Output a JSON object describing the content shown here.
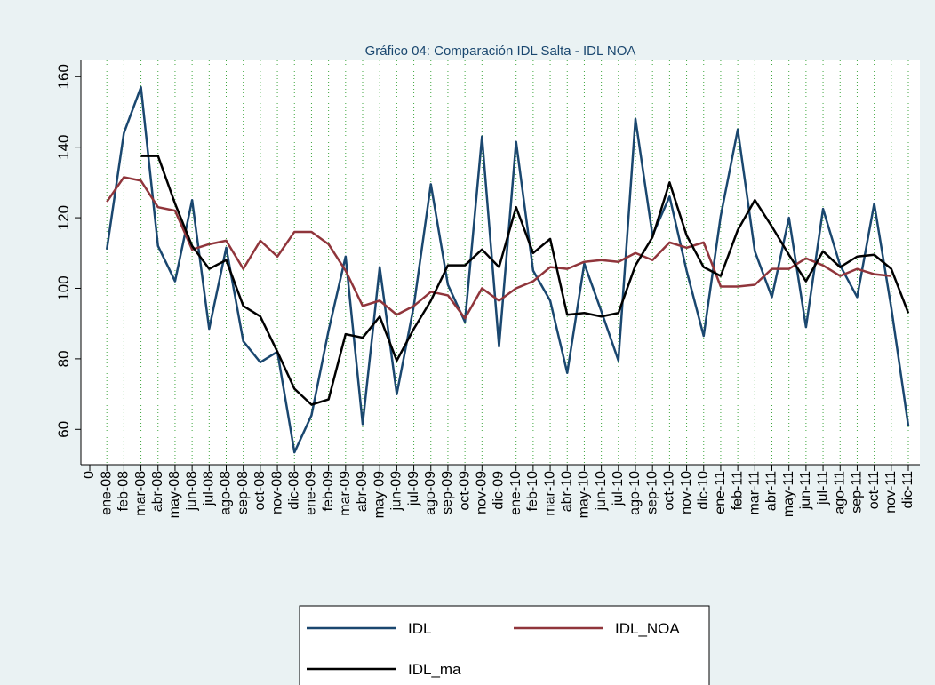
{
  "chart_data": {
    "type": "line",
    "title": "Gráfico 04: Comparación IDL Salta - IDL NOA",
    "categories": [
      "0",
      "ene-08",
      "feb-08",
      "mar-08",
      "abr-08",
      "may-08",
      "jun-08",
      "jul-08",
      "ago-08",
      "sep-08",
      "oct-08",
      "nov-08",
      "dic-08",
      "ene-09",
      "feb-09",
      "mar-09",
      "abr-09",
      "may-09",
      "jun-09",
      "jul-09",
      "ago-09",
      "sep-09",
      "oct-09",
      "nov-09",
      "dic-09",
      "ene-10",
      "feb-10",
      "mar-10",
      "abr-10",
      "may-10",
      "jun-10",
      "jul-10",
      "ago-10",
      "sep-10",
      "oct-10",
      "nov-10",
      "dic-10",
      "ene-11",
      "feb-11",
      "mar-11",
      "abr-11",
      "may-11",
      "jun-11",
      "jul-11",
      "ago-11",
      "sep-11",
      "oct-11",
      "nov-11",
      "dic-11"
    ],
    "series": [
      {
        "name": "IDL",
        "color": "#1a476f",
        "values": [
          null,
          111,
          144,
          157,
          112,
          102,
          125,
          88.5,
          111.5,
          85,
          79,
          82,
          53.5,
          64,
          88,
          109,
          61.5,
          106,
          70,
          95,
          129.5,
          101,
          90.5,
          143,
          83.5,
          141.5,
          105,
          96.5,
          76,
          107,
          93.5,
          79.5,
          148,
          115,
          126,
          105,
          86.5,
          120.5,
          145,
          110.5,
          97.5,
          120,
          89,
          122.5,
          106.5,
          97.5,
          124,
          94.5,
          61
        ]
      },
      {
        "name": "IDL_NOA",
        "color": "#90353b",
        "values": [
          null,
          124.5,
          131.5,
          130.5,
          123,
          122,
          111,
          112.5,
          113.5,
          105.5,
          113.5,
          109,
          116,
          116,
          112.5,
          105,
          95,
          96.5,
          92.5,
          95,
          99,
          98,
          91.5,
          100,
          96.5,
          100,
          102,
          106,
          105.5,
          107.5,
          108,
          107.5,
          110,
          108,
          113,
          111.5,
          113,
          100.5,
          100.5,
          101,
          105.5,
          105.5,
          108.5,
          106.5,
          103.5,
          105.5,
          104,
          103.5,
          null
        ]
      },
      {
        "name": "IDL_ma",
        "color": "#000000",
        "values": [
          null,
          null,
          null,
          137.5,
          137.5,
          124,
          112,
          105.5,
          108,
          95,
          92,
          82,
          71.5,
          67,
          68.5,
          87,
          86,
          92,
          79.5,
          88.5,
          96.5,
          106.5,
          106.5,
          111,
          106,
          123,
          110,
          114,
          92.5,
          93,
          92,
          93,
          106.5,
          114.5,
          130,
          115,
          106,
          103.5,
          116.5,
          125,
          117.5,
          109.5,
          102,
          110.5,
          106,
          109,
          109.5,
          105.5,
          93
        ]
      }
    ],
    "ylim": [
      50,
      164.6
    ],
    "yticks": [
      60,
      80,
      100,
      120,
      140,
      160
    ],
    "grid": "x",
    "legend": "bottom"
  }
}
